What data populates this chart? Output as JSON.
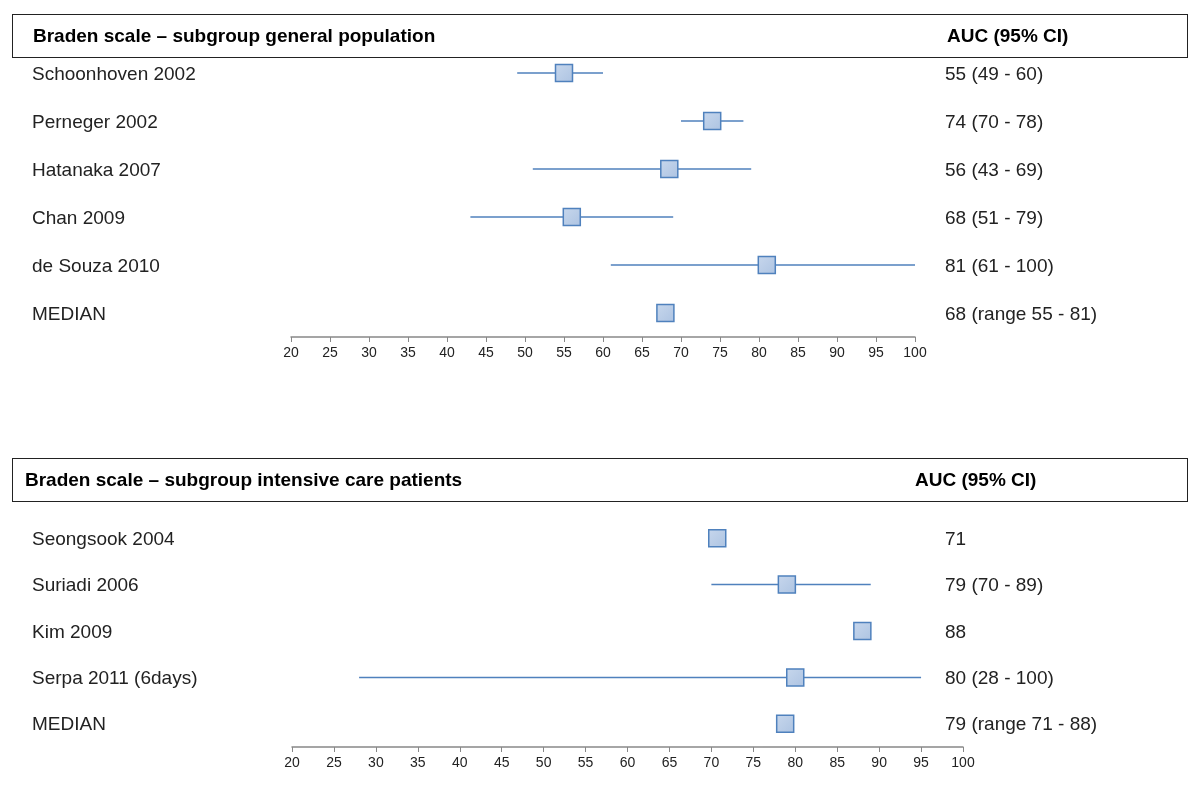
{
  "chart_data": [
    {
      "type": "scatter",
      "title": "Braden scale – subgroup general population",
      "annotations": [
        "AUC (95% CI)",
        "55 (49 - 60)",
        "74 (70 - 78)",
        "56 (43 - 69)",
        "68 (51 - 79)",
        "81 (61 - 100)",
        "68 (range 55 - 81)"
      ],
      "orientation": "horizontal",
      "marker": "square",
      "color": "#4f81bd",
      "categories": [
        "Schoonhoven 2002",
        "Perneger 2002",
        "Hatanaka 2007",
        "Chan 2009",
        "de Souza 2010",
        "MEDIAN"
      ],
      "values": [
        55,
        74,
        68.5,
        56,
        81,
        68
      ],
      "errors": [
        [
          49,
          60
        ],
        [
          70,
          78
        ],
        [
          51,
          79
        ],
        [
          43,
          69
        ],
        [
          61,
          100
        ],
        null
      ],
      "xlim": [
        20,
        100
      ],
      "xticks": [
        20,
        25,
        30,
        35,
        40,
        45,
        50,
        55,
        60,
        65,
        70,
        75,
        80,
        85,
        90,
        95,
        100
      ]
    },
    {
      "type": "scatter",
      "title": "Braden scale – subgroup intensive care patients",
      "annotations": [
        "AUC (95% CI)",
        "71",
        "79 (70 - 89)",
        "88",
        "80 (28 - 100)",
        "79 (range 71 - 88)"
      ],
      "orientation": "horizontal",
      "marker": "square",
      "color": "#4f81bd",
      "categories": [
        "Seongsook 2004",
        "Suriadi 2006",
        "Kim 2009",
        "Serpa 2011 (6days)",
        "MEDIAN"
      ],
      "values": [
        70.7,
        79,
        88,
        80,
        78.8
      ],
      "errors": [
        null,
        [
          70,
          89
        ],
        null,
        [
          28,
          95
        ],
        null
      ],
      "xlim": [
        20,
        100
      ],
      "xticks": [
        20,
        25,
        30,
        35,
        40,
        45,
        50,
        55,
        60,
        65,
        70,
        75,
        80,
        85,
        90,
        95,
        100
      ]
    }
  ]
}
